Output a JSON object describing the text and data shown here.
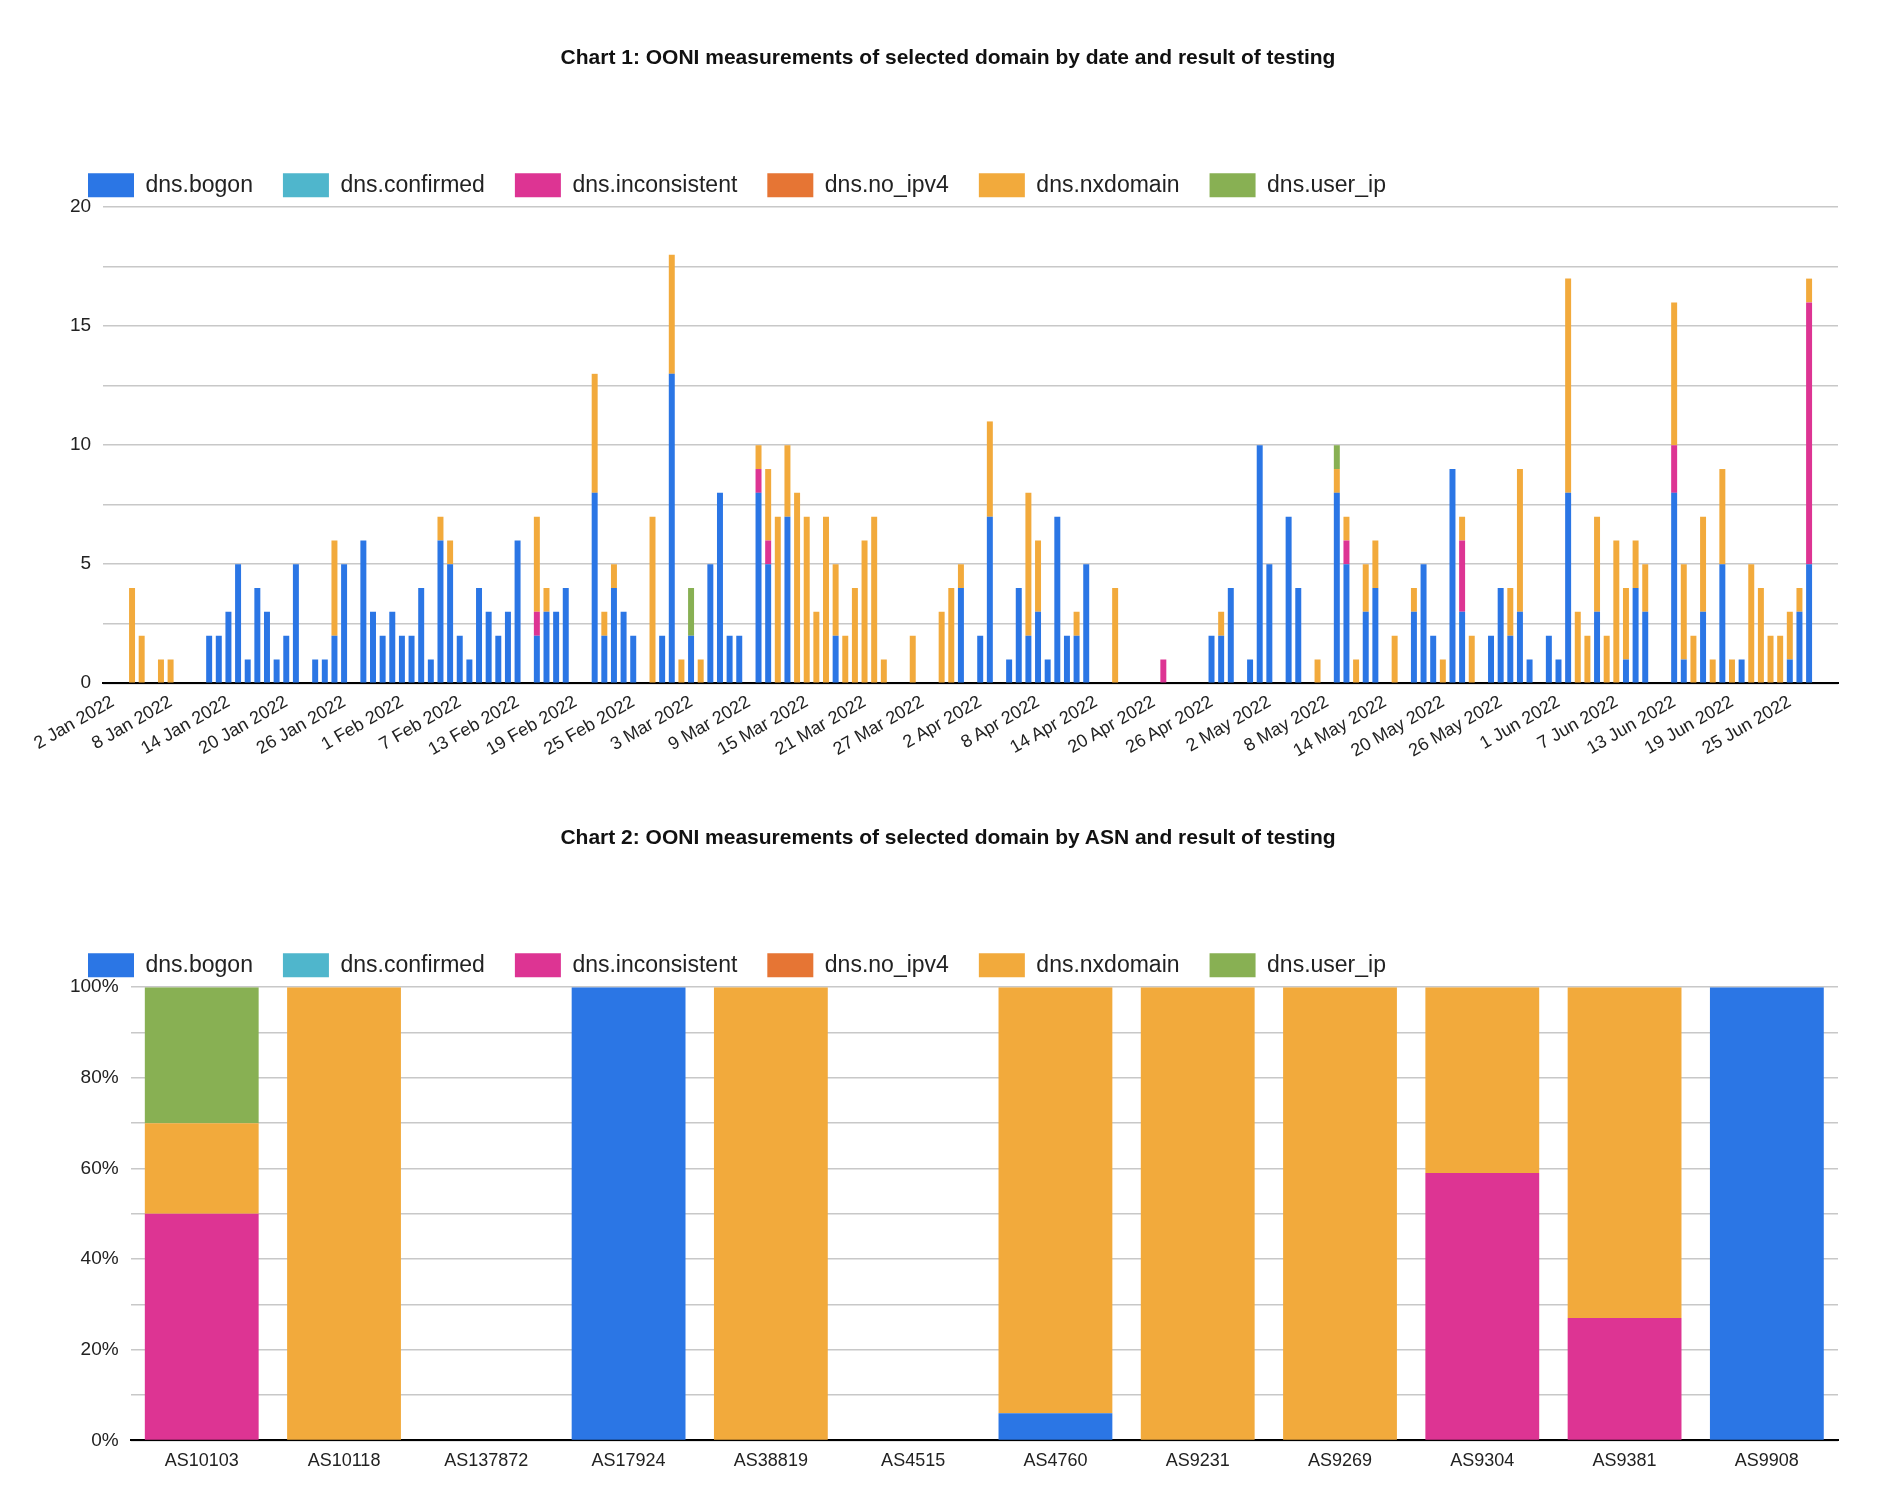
{
  "chart_data": [
    {
      "type": "bar",
      "title": "Chart 1: OONI measurements of selected domain by date and result of testing",
      "stacked": true,
      "legend": "top left",
      "grid": "y",
      "xlim": [
        "2022-01-01",
        "2022-06-30"
      ],
      "xticks": [
        {
          "value": "2022-01-02",
          "label": "2 Jan 2022"
        },
        {
          "value": "2022-01-08",
          "label": "8 Jan 2022"
        },
        {
          "value": "2022-01-14",
          "label": "14 Jan 2022"
        },
        {
          "value": "2022-01-20",
          "label": "20 Jan 2022"
        },
        {
          "value": "2022-01-26",
          "label": "26 Jan 2022"
        },
        {
          "value": "2022-02-01",
          "label": "1 Feb 2022"
        },
        {
          "value": "2022-02-07",
          "label": "7 Feb 2022"
        },
        {
          "value": "2022-02-13",
          "label": "13 Feb 2022"
        },
        {
          "value": "2022-02-19",
          "label": "19 Feb 2022"
        },
        {
          "value": "2022-02-25",
          "label": "25 Feb 2022"
        },
        {
          "value": "2022-03-03",
          "label": "3 Mar 2022"
        },
        {
          "value": "2022-03-09",
          "label": "9 Mar 2022"
        },
        {
          "value": "2022-03-15",
          "label": "15 Mar 2022"
        },
        {
          "value": "2022-03-21",
          "label": "21 Mar 2022"
        },
        {
          "value": "2022-03-27",
          "label": "27 Mar 2022"
        },
        {
          "value": "2022-04-02",
          "label": "2 Apr 2022"
        },
        {
          "value": "2022-04-08",
          "label": "8 Apr 2022"
        },
        {
          "value": "2022-04-14",
          "label": "14 Apr 2022"
        },
        {
          "value": "2022-04-20",
          "label": "20 Apr 2022"
        },
        {
          "value": "2022-04-26",
          "label": "26 Apr 2022"
        },
        {
          "value": "2022-05-02",
          "label": "2 May 2022"
        },
        {
          "value": "2022-05-08",
          "label": "8 May 2022"
        },
        {
          "value": "2022-05-14",
          "label": "14 May 2022"
        },
        {
          "value": "2022-05-20",
          "label": "20 May 2022"
        },
        {
          "value": "2022-05-26",
          "label": "26 May 2022"
        },
        {
          "value": "2022-06-01",
          "label": "1 Jun 2022"
        },
        {
          "value": "2022-06-07",
          "label": "7 Jun 2022"
        },
        {
          "value": "2022-06-13",
          "label": "13 Jun 2022"
        },
        {
          "value": "2022-06-19",
          "label": "19 Jun 2022"
        },
        {
          "value": "2022-06-25",
          "label": "25 Jun 2022"
        }
      ],
      "ylim": [
        0,
        20
      ],
      "yticks": [
        0,
        {
          "value": 2.5,
          "label": null
        },
        5,
        {
          "value": 7.5,
          "label": null
        },
        10,
        {
          "value": 12.5,
          "label": null
        },
        15,
        {
          "value": 17.5,
          "label": null
        },
        20
      ],
      "x": [
        "2022-01-04",
        "2022-01-05",
        "2022-01-07",
        "2022-01-08",
        "2022-01-12",
        "2022-01-13",
        "2022-01-14",
        "2022-01-15",
        "2022-01-16",
        "2022-01-17",
        "2022-01-18",
        "2022-01-19",
        "2022-01-20",
        "2022-01-21",
        "2022-01-23",
        "2022-01-24",
        "2022-01-25",
        "2022-01-26",
        "2022-01-28",
        "2022-01-29",
        "2022-01-30",
        "2022-01-31",
        "2022-02-01",
        "2022-02-02",
        "2022-02-03",
        "2022-02-04",
        "2022-02-05",
        "2022-02-06",
        "2022-02-07",
        "2022-02-08",
        "2022-02-09",
        "2022-02-10",
        "2022-02-11",
        "2022-02-12",
        "2022-02-13",
        "2022-02-15",
        "2022-02-16",
        "2022-02-17",
        "2022-02-18",
        "2022-02-21",
        "2022-02-22",
        "2022-02-23",
        "2022-02-24",
        "2022-02-25",
        "2022-02-27",
        "2022-02-28",
        "2022-03-01",
        "2022-03-02",
        "2022-03-03",
        "2022-03-04",
        "2022-03-05",
        "2022-03-06",
        "2022-03-07",
        "2022-03-08",
        "2022-03-10",
        "2022-03-11",
        "2022-03-12",
        "2022-03-13",
        "2022-03-14",
        "2022-03-15",
        "2022-03-16",
        "2022-03-17",
        "2022-03-18",
        "2022-03-19",
        "2022-03-20",
        "2022-03-21",
        "2022-03-22",
        "2022-03-23",
        "2022-03-26",
        "2022-03-29",
        "2022-03-30",
        "2022-03-31",
        "2022-04-02",
        "2022-04-03",
        "2022-04-05",
        "2022-04-06",
        "2022-04-07",
        "2022-04-08",
        "2022-04-09",
        "2022-04-10",
        "2022-04-11",
        "2022-04-12",
        "2022-04-13",
        "2022-04-16",
        "2022-04-21",
        "2022-04-26",
        "2022-04-27",
        "2022-04-28",
        "2022-04-30",
        "2022-05-01",
        "2022-05-02",
        "2022-05-04",
        "2022-05-05",
        "2022-05-07",
        "2022-05-09",
        "2022-05-10",
        "2022-05-11",
        "2022-05-12",
        "2022-05-13",
        "2022-05-15",
        "2022-05-17",
        "2022-05-18",
        "2022-05-19",
        "2022-05-20",
        "2022-05-21",
        "2022-05-22",
        "2022-05-23",
        "2022-05-25",
        "2022-05-26",
        "2022-05-27",
        "2022-05-28",
        "2022-05-29",
        "2022-05-31",
        "2022-06-01",
        "2022-06-02",
        "2022-06-03",
        "2022-06-04",
        "2022-06-05",
        "2022-06-06",
        "2022-06-07",
        "2022-06-08",
        "2022-06-09",
        "2022-06-10",
        "2022-06-13",
        "2022-06-14",
        "2022-06-15",
        "2022-06-16",
        "2022-06-17",
        "2022-06-18",
        "2022-06-19",
        "2022-06-20",
        "2022-06-21",
        "2022-06-22",
        "2022-06-23",
        "2022-06-24",
        "2022-06-25",
        "2022-06-26",
        "2022-06-27"
      ],
      "series": [
        {
          "name": "dns.bogon",
          "color": "#2b76e5",
          "values": [
            0,
            0,
            0,
            0,
            2,
            2,
            3,
            5,
            1,
            4,
            3,
            1,
            2,
            5,
            1,
            1,
            2,
            5,
            6,
            3,
            2,
            3,
            2,
            2,
            4,
            1,
            6,
            5,
            2,
            1,
            4,
            3,
            2,
            3,
            6,
            2,
            3,
            3,
            4,
            8,
            2,
            4,
            3,
            2,
            0,
            2,
            13,
            0,
            2,
            0,
            5,
            8,
            2,
            2,
            8,
            5,
            0,
            7,
            0,
            0,
            0,
            0,
            2,
            0,
            0,
            0,
            0,
            0,
            0,
            0,
            0,
            4,
            2,
            7,
            1,
            4,
            2,
            3,
            1,
            7,
            2,
            2,
            5,
            0,
            0,
            2,
            2,
            4,
            1,
            10,
            5,
            7,
            4,
            0,
            8,
            5,
            0,
            3,
            4,
            0,
            3,
            5,
            2,
            0,
            9,
            3,
            0,
            2,
            4,
            2,
            3,
            1,
            2,
            1,
            8,
            0,
            0,
            3,
            0,
            0,
            1,
            4,
            3,
            8,
            1,
            0,
            3,
            0,
            5,
            0,
            1,
            0,
            0,
            0,
            0,
            1,
            3,
            5
          ]
        },
        {
          "name": "dns.confirmed",
          "color": "#4fb6cc",
          "values": [
            0,
            0,
            0,
            0,
            0,
            0,
            0,
            0,
            0,
            0,
            0,
            0,
            0,
            0,
            0,
            0,
            0,
            0,
            0,
            0,
            0,
            0,
            0,
            0,
            0,
            0,
            0,
            0,
            0,
            0,
            0,
            0,
            0,
            0,
            0,
            0,
            0,
            0,
            0,
            0,
            0,
            0,
            0,
            0,
            0,
            0,
            0,
            0,
            0,
            0,
            0,
            0,
            0,
            0,
            0,
            0,
            0,
            0,
            0,
            0,
            0,
            0,
            0,
            0,
            0,
            0,
            0,
            0,
            0,
            0,
            0,
            0,
            0,
            0,
            0,
            0,
            0,
            0,
            0,
            0,
            0,
            0,
            0,
            0,
            0,
            0,
            0,
            0,
            0,
            0,
            0,
            0,
            0,
            0,
            0,
            0,
            0,
            0,
            0,
            0,
            0,
            0,
            0,
            0,
            0,
            0,
            0,
            0,
            0,
            0,
            0,
            0,
            0,
            0,
            0,
            0,
            0,
            0,
            0,
            0,
            0,
            0,
            0,
            0,
            0,
            0,
            0,
            0,
            0,
            0,
            0,
            0,
            0,
            0,
            0,
            0,
            0,
            0
          ]
        },
        {
          "name": "dns.inconsistent",
          "color": "#dd3493",
          "values": [
            0,
            0,
            0,
            0,
            0,
            0,
            0,
            0,
            0,
            0,
            0,
            0,
            0,
            0,
            0,
            0,
            0,
            0,
            0,
            0,
            0,
            0,
            0,
            0,
            0,
            0,
            0,
            0,
            0,
            0,
            0,
            0,
            0,
            0,
            0,
            1,
            0,
            0,
            0,
            0,
            0,
            0,
            0,
            0,
            0,
            0,
            0,
            0,
            0,
            0,
            0,
            0,
            0,
            0,
            1,
            1,
            0,
            0,
            0,
            0,
            0,
            0,
            0,
            0,
            0,
            0,
            0,
            0,
            0,
            0,
            0,
            0,
            0,
            0,
            0,
            0,
            0,
            0,
            0,
            0,
            0,
            0,
            0,
            0,
            1,
            0,
            0,
            0,
            0,
            0,
            0,
            0,
            0,
            0,
            0,
            1,
            0,
            0,
            0,
            0,
            0,
            0,
            0,
            0,
            0,
            3,
            0,
            0,
            0,
            0,
            0,
            0,
            0,
            0,
            0,
            0,
            0,
            0,
            0,
            0,
            0,
            0,
            0,
            2,
            0,
            0,
            0,
            0,
            0,
            0,
            0,
            0,
            0,
            0,
            0,
            0,
            0,
            11
          ]
        },
        {
          "name": "dns.no_ipv4",
          "color": "#e67534",
          "values": [
            0,
            0,
            0,
            0,
            0,
            0,
            0,
            0,
            0,
            0,
            0,
            0,
            0,
            0,
            0,
            0,
            0,
            0,
            0,
            0,
            0,
            0,
            0,
            0,
            0,
            0,
            0,
            0,
            0,
            0,
            0,
            0,
            0,
            0,
            0,
            0,
            0,
            0,
            0,
            0,
            0,
            0,
            0,
            0,
            0,
            0,
            0,
            0,
            0,
            0,
            0,
            0,
            0,
            0,
            0,
            0,
            0,
            0,
            0,
            0,
            0,
            0,
            0,
            0,
            0,
            0,
            0,
            0,
            0,
            0,
            0,
            0,
            0,
            0,
            0,
            0,
            0,
            0,
            0,
            0,
            0,
            0,
            0,
            0,
            0,
            0,
            0,
            0,
            0,
            0,
            0,
            0,
            0,
            0,
            0,
            0,
            0,
            0,
            0,
            0,
            0,
            0,
            0,
            0,
            0,
            0,
            0,
            0,
            0,
            0,
            0,
            0,
            0,
            0,
            0,
            0,
            0,
            0,
            0,
            0,
            0,
            0,
            0,
            0,
            0,
            0,
            0,
            0,
            0,
            0,
            0,
            0,
            0,
            0,
            0,
            0,
            0,
            0
          ]
        },
        {
          "name": "dns.nxdomain",
          "color": "#f2aa3c",
          "values": [
            4,
            2,
            1,
            1,
            0,
            0,
            0,
            0,
            0,
            0,
            0,
            0,
            0,
            0,
            0,
            0,
            4,
            0,
            0,
            0,
            0,
            0,
            0,
            0,
            0,
            0,
            1,
            1,
            0,
            0,
            0,
            0,
            0,
            0,
            0,
            4,
            1,
            0,
            0,
            5,
            1,
            1,
            0,
            0,
            7,
            0,
            5,
            1,
            0,
            1,
            0,
            0,
            0,
            0,
            1,
            3,
            7,
            3,
            8,
            7,
            3,
            7,
            3,
            2,
            4,
            6,
            7,
            1,
            2,
            3,
            4,
            1,
            0,
            4,
            0,
            0,
            6,
            3,
            0,
            0,
            0,
            1,
            0,
            4,
            0,
            0,
            1,
            0,
            0,
            0,
            0,
            0,
            0,
            1,
            1,
            1,
            1,
            2,
            2,
            2,
            1,
            0,
            0,
            1,
            0,
            1,
            2,
            0,
            0,
            2,
            6,
            0,
            0,
            0,
            9,
            3,
            2,
            4,
            2,
            6,
            3,
            2,
            2,
            6,
            4,
            2,
            4,
            1,
            4,
            1,
            0,
            5,
            4,
            2,
            2,
            2,
            1,
            1
          ]
        },
        {
          "name": "dns.user_ip",
          "color": "#88b053",
          "values": [
            0,
            0,
            0,
            0,
            0,
            0,
            0,
            0,
            0,
            0,
            0,
            0,
            0,
            0,
            0,
            0,
            0,
            0,
            0,
            0,
            0,
            0,
            0,
            0,
            0,
            0,
            0,
            0,
            0,
            0,
            0,
            0,
            0,
            0,
            0,
            0,
            0,
            0,
            0,
            0,
            0,
            0,
            0,
            0,
            0,
            0,
            0,
            0,
            2,
            0,
            0,
            0,
            0,
            0,
            0,
            0,
            0,
            0,
            0,
            0,
            0,
            0,
            0,
            0,
            0,
            0,
            0,
            0,
            0,
            0,
            0,
            0,
            0,
            0,
            0,
            0,
            0,
            0,
            0,
            0,
            0,
            0,
            0,
            0,
            0,
            0,
            0,
            0,
            0,
            0,
            0,
            0,
            0,
            0,
            1,
            0,
            0,
            0,
            0,
            0,
            0,
            0,
            0,
            0,
            0,
            0,
            0,
            0,
            0,
            0,
            0,
            0,
            0,
            0,
            0,
            0,
            0,
            0,
            0,
            0,
            0,
            0,
            0,
            0,
            0,
            0,
            0,
            0,
            0,
            0,
            0,
            0,
            0,
            0,
            0,
            0,
            0,
            0
          ]
        }
      ]
    },
    {
      "type": "bar",
      "title": "Chart 2: OONI measurements of selected domain by ASN and result of testing",
      "stacked": true,
      "legend": "top left",
      "grid": "y",
      "categories": [
        "AS10103",
        "AS10118",
        "AS137872",
        "AS17924",
        "AS38819",
        "AS4515",
        "AS4760",
        "AS9231",
        "AS9269",
        "AS9304",
        "AS9381",
        "AS9908"
      ],
      "ylim": [
        0,
        100
      ],
      "yticks": [
        {
          "value": 0,
          "label": "0%"
        },
        {
          "value": 10,
          "label": null
        },
        {
          "value": 20,
          "label": "20%"
        },
        {
          "value": 30,
          "label": null
        },
        {
          "value": 40,
          "label": "40%"
        },
        {
          "value": 50,
          "label": null
        },
        {
          "value": 60,
          "label": "60%"
        },
        {
          "value": 70,
          "label": null
        },
        {
          "value": 80,
          "label": "80%"
        },
        {
          "value": 90,
          "label": null
        },
        {
          "value": 100,
          "label": "100%"
        }
      ],
      "series": [
        {
          "name": "dns.bogon",
          "color": "#2b76e5",
          "values": [
            0,
            0,
            null,
            100,
            0,
            null,
            6,
            0,
            0,
            0,
            0,
            100
          ]
        },
        {
          "name": "dns.confirmed",
          "color": "#4fb6cc",
          "values": [
            0,
            0,
            null,
            0,
            0,
            null,
            0,
            0,
            0,
            0,
            0,
            0
          ]
        },
        {
          "name": "dns.inconsistent",
          "color": "#dd3493",
          "values": [
            50,
            0,
            null,
            0,
            0,
            null,
            0,
            0,
            0,
            59,
            27,
            0
          ]
        },
        {
          "name": "dns.no_ipv4",
          "color": "#e67534",
          "values": [
            0,
            0,
            null,
            0,
            0,
            null,
            0,
            0,
            0,
            0,
            0,
            0
          ]
        },
        {
          "name": "dns.nxdomain",
          "color": "#f2aa3c",
          "values": [
            20,
            100,
            null,
            0,
            100,
            null,
            94,
            100,
            100,
            41,
            73,
            0
          ]
        },
        {
          "name": "dns.user_ip",
          "color": "#88b053",
          "values": [
            30,
            0,
            null,
            0,
            0,
            null,
            0,
            0,
            0,
            0,
            0,
            0
          ]
        }
      ]
    }
  ]
}
